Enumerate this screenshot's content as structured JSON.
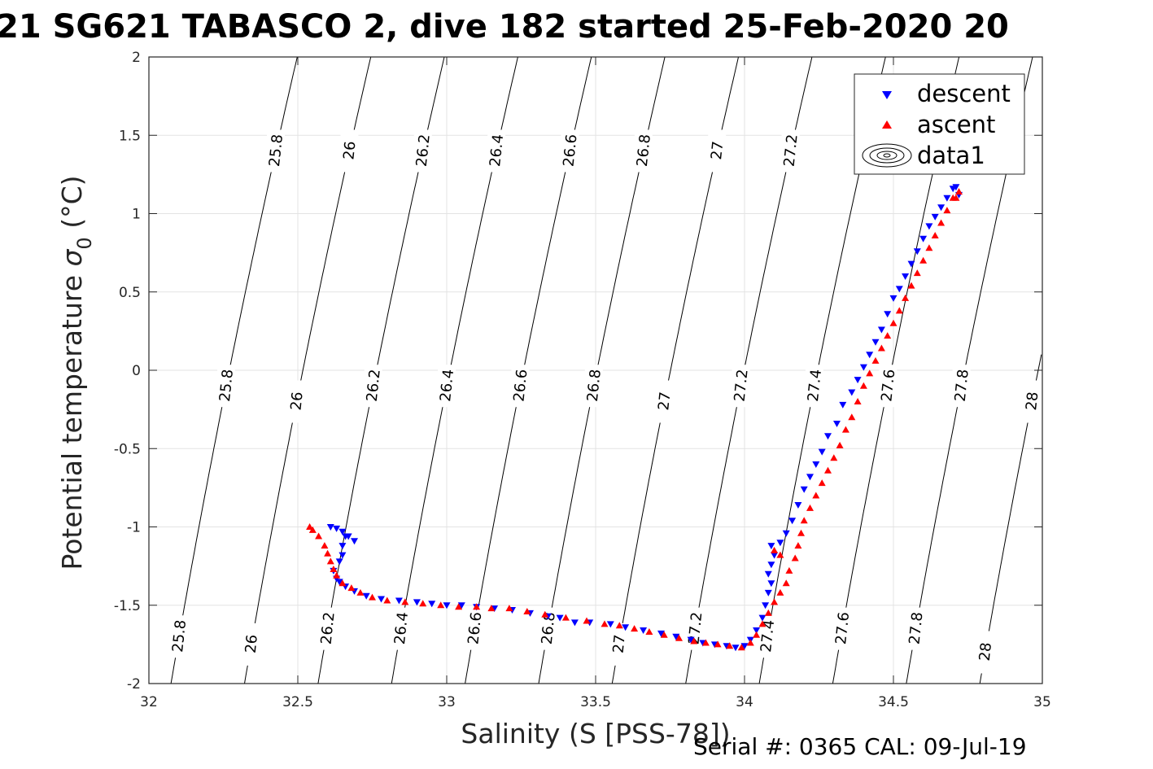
{
  "chart_data": {
    "type": "scatter",
    "title": "21 SG621 TABASCO 2, dive 182 started 25-Feb-2020 20",
    "xlabel": "Salinity (S [PSS-78])",
    "ylabel_main": "Potential temperature ",
    "ylabel_symbol": "σ",
    "ylabel_sub": "0",
    "ylabel_unit": " (°C)",
    "xlim": [
      32,
      35
    ],
    "ylim": [
      -2,
      2
    ],
    "x_ticks": [
      "32",
      "32.5",
      "33",
      "33.5",
      "34",
      "34.5",
      "35"
    ],
    "y_ticks": [
      "-2",
      "-1.5",
      "-1",
      "-0.5",
      "0",
      "0.5",
      "1",
      "1.5",
      "2"
    ],
    "grid": true,
    "legend_position": "top-right",
    "legend": [
      "descent",
      "ascent",
      "data1"
    ],
    "footer": "Serial #: 0365  CAL: 09-Jul-19",
    "density_contours": [
      {
        "level": 25.8,
        "label": "25.8",
        "label_temps": [
          1.4,
          -0.1,
          -1.7
        ]
      },
      {
        "level": 26.0,
        "label": "26",
        "label_temps": [
          1.4,
          -0.2,
          -1.75
        ]
      },
      {
        "level": 26.2,
        "label": "26.2",
        "label_temps": [
          1.4,
          -0.1,
          -1.65
        ]
      },
      {
        "level": 26.4,
        "label": "26.4",
        "label_temps": [
          1.4,
          -0.1,
          -1.65
        ]
      },
      {
        "level": 26.6,
        "label": "26.6",
        "label_temps": [
          1.4,
          -0.1,
          -1.65
        ]
      },
      {
        "level": 26.8,
        "label": "26.8",
        "label_temps": [
          1.4,
          -0.1,
          -1.65
        ]
      },
      {
        "level": 27.0,
        "label": "27",
        "label_temps": [
          1.4,
          -0.2,
          -1.75
        ]
      },
      {
        "level": 27.2,
        "label": "27.2",
        "label_temps": [
          1.4,
          -0.1,
          -1.65
        ]
      },
      {
        "level": 27.4,
        "label": "27.4",
        "label_temps": [
          1.4,
          -0.1,
          -1.7
        ]
      },
      {
        "level": 27.6,
        "label": "27.6",
        "label_temps": [
          -0.1,
          -1.65
        ]
      },
      {
        "level": 27.8,
        "label": "27.8",
        "label_temps": [
          -0.1,
          -1.65
        ]
      },
      {
        "level": 28.0,
        "label": "28",
        "label_temps": [
          1.3,
          -0.2,
          -1.8
        ]
      }
    ],
    "series": [
      {
        "name": "descent",
        "color": "#0000ff",
        "marker": "triangle-down",
        "points": [
          [
            32.61,
            -1.0
          ],
          [
            32.63,
            -1.01
          ],
          [
            32.65,
            -1.03
          ],
          [
            32.67,
            -1.06
          ],
          [
            32.69,
            -1.09
          ],
          [
            32.66,
            -1.06
          ],
          [
            32.65,
            -1.12
          ],
          [
            32.65,
            -1.18
          ],
          [
            32.64,
            -1.22
          ],
          [
            32.62,
            -1.28
          ],
          [
            32.63,
            -1.33
          ],
          [
            32.64,
            -1.35
          ],
          [
            32.66,
            -1.38
          ],
          [
            32.69,
            -1.41
          ],
          [
            32.73,
            -1.44
          ],
          [
            32.78,
            -1.46
          ],
          [
            32.84,
            -1.47
          ],
          [
            32.9,
            -1.48
          ],
          [
            32.95,
            -1.49
          ],
          [
            33.0,
            -1.5
          ],
          [
            33.05,
            -1.5
          ],
          [
            33.1,
            -1.51
          ],
          [
            33.16,
            -1.52
          ],
          [
            33.22,
            -1.53
          ],
          [
            33.28,
            -1.55
          ],
          [
            33.34,
            -1.57
          ],
          [
            33.38,
            -1.58
          ],
          [
            33.43,
            -1.61
          ],
          [
            33.48,
            -1.61
          ],
          [
            33.55,
            -1.62
          ],
          [
            33.6,
            -1.64
          ],
          [
            33.66,
            -1.66
          ],
          [
            33.72,
            -1.68
          ],
          [
            33.77,
            -1.7
          ],
          [
            33.82,
            -1.72
          ],
          [
            33.86,
            -1.74
          ],
          [
            33.9,
            -1.75
          ],
          [
            33.94,
            -1.76
          ],
          [
            33.97,
            -1.77
          ],
          [
            34.0,
            -1.76
          ],
          [
            34.02,
            -1.72
          ],
          [
            34.04,
            -1.66
          ],
          [
            34.06,
            -1.58
          ],
          [
            34.07,
            -1.5
          ],
          [
            34.08,
            -1.42
          ],
          [
            34.09,
            -1.36
          ],
          [
            34.08,
            -1.3
          ],
          [
            34.09,
            -1.24
          ],
          [
            34.1,
            -1.18
          ],
          [
            34.09,
            -1.12
          ],
          [
            34.12,
            -1.1
          ],
          [
            34.14,
            -1.04
          ],
          [
            34.16,
            -0.96
          ],
          [
            34.18,
            -0.86
          ],
          [
            34.2,
            -0.76
          ],
          [
            34.22,
            -0.68
          ],
          [
            34.24,
            -0.6
          ],
          [
            34.26,
            -0.52
          ],
          [
            34.28,
            -0.42
          ],
          [
            34.31,
            -0.34
          ],
          [
            34.33,
            -0.22
          ],
          [
            34.36,
            -0.14
          ],
          [
            34.38,
            -0.06
          ],
          [
            34.4,
            0.02
          ],
          [
            34.42,
            0.1
          ],
          [
            34.44,
            0.18
          ],
          [
            34.46,
            0.26
          ],
          [
            34.48,
            0.36
          ],
          [
            34.5,
            0.46
          ],
          [
            34.52,
            0.52
          ],
          [
            34.54,
            0.6
          ],
          [
            34.56,
            0.68
          ],
          [
            34.58,
            0.76
          ],
          [
            34.6,
            0.84
          ],
          [
            34.62,
            0.92
          ],
          [
            34.64,
            0.98
          ],
          [
            34.66,
            1.04
          ],
          [
            34.68,
            1.1
          ],
          [
            34.7,
            1.16
          ],
          [
            34.71,
            1.17
          ],
          [
            34.72,
            1.12
          ]
        ]
      },
      {
        "name": "ascent",
        "color": "#ff0000",
        "marker": "triangle-up",
        "points": [
          [
            32.54,
            -1.0
          ],
          [
            32.55,
            -1.02
          ],
          [
            32.57,
            -1.06
          ],
          [
            32.59,
            -1.12
          ],
          [
            32.6,
            -1.17
          ],
          [
            32.61,
            -1.22
          ],
          [
            32.62,
            -1.27
          ],
          [
            32.63,
            -1.31
          ],
          [
            32.65,
            -1.36
          ],
          [
            32.68,
            -1.39
          ],
          [
            32.71,
            -1.42
          ],
          [
            32.75,
            -1.45
          ],
          [
            32.8,
            -1.47
          ],
          [
            32.86,
            -1.48
          ],
          [
            32.92,
            -1.49
          ],
          [
            32.98,
            -1.5
          ],
          [
            33.04,
            -1.51
          ],
          [
            33.1,
            -1.51
          ],
          [
            33.15,
            -1.52
          ],
          [
            33.21,
            -1.52
          ],
          [
            33.27,
            -1.54
          ],
          [
            33.33,
            -1.56
          ],
          [
            33.4,
            -1.58
          ],
          [
            33.47,
            -1.6
          ],
          [
            33.53,
            -1.62
          ],
          [
            33.58,
            -1.63
          ],
          [
            33.63,
            -1.65
          ],
          [
            33.68,
            -1.67
          ],
          [
            33.73,
            -1.69
          ],
          [
            33.78,
            -1.71
          ],
          [
            33.83,
            -1.73
          ],
          [
            33.87,
            -1.74
          ],
          [
            33.91,
            -1.75
          ],
          [
            33.95,
            -1.76
          ],
          [
            33.99,
            -1.77
          ],
          [
            34.02,
            -1.74
          ],
          [
            34.04,
            -1.69
          ],
          [
            34.06,
            -1.62
          ],
          [
            34.08,
            -1.55
          ],
          [
            34.1,
            -1.48
          ],
          [
            34.12,
            -1.42
          ],
          [
            34.14,
            -1.36
          ],
          [
            34.15,
            -1.28
          ],
          [
            34.17,
            -1.2
          ],
          [
            34.18,
            -1.12
          ],
          [
            34.1,
            -1.15
          ],
          [
            34.12,
            -1.18
          ],
          [
            34.19,
            -1.04
          ],
          [
            34.2,
            -0.96
          ],
          [
            34.22,
            -0.88
          ],
          [
            34.24,
            -0.8
          ],
          [
            34.26,
            -0.72
          ],
          [
            34.28,
            -0.64
          ],
          [
            34.3,
            -0.56
          ],
          [
            34.32,
            -0.48
          ],
          [
            34.34,
            -0.38
          ],
          [
            34.36,
            -0.3
          ],
          [
            34.38,
            -0.2
          ],
          [
            34.4,
            -0.1
          ],
          [
            34.42,
            -0.02
          ],
          [
            34.44,
            0.06
          ],
          [
            34.46,
            0.14
          ],
          [
            34.48,
            0.22
          ],
          [
            34.5,
            0.3
          ],
          [
            34.52,
            0.38
          ],
          [
            34.54,
            0.46
          ],
          [
            34.56,
            0.54
          ],
          [
            34.58,
            0.62
          ],
          [
            34.6,
            0.7
          ],
          [
            34.62,
            0.78
          ],
          [
            34.64,
            0.86
          ],
          [
            34.66,
            0.94
          ],
          [
            34.68,
            1.02
          ],
          [
            34.7,
            1.1
          ],
          [
            34.72,
            1.14
          ],
          [
            34.71,
            1.1
          ]
        ]
      }
    ]
  }
}
